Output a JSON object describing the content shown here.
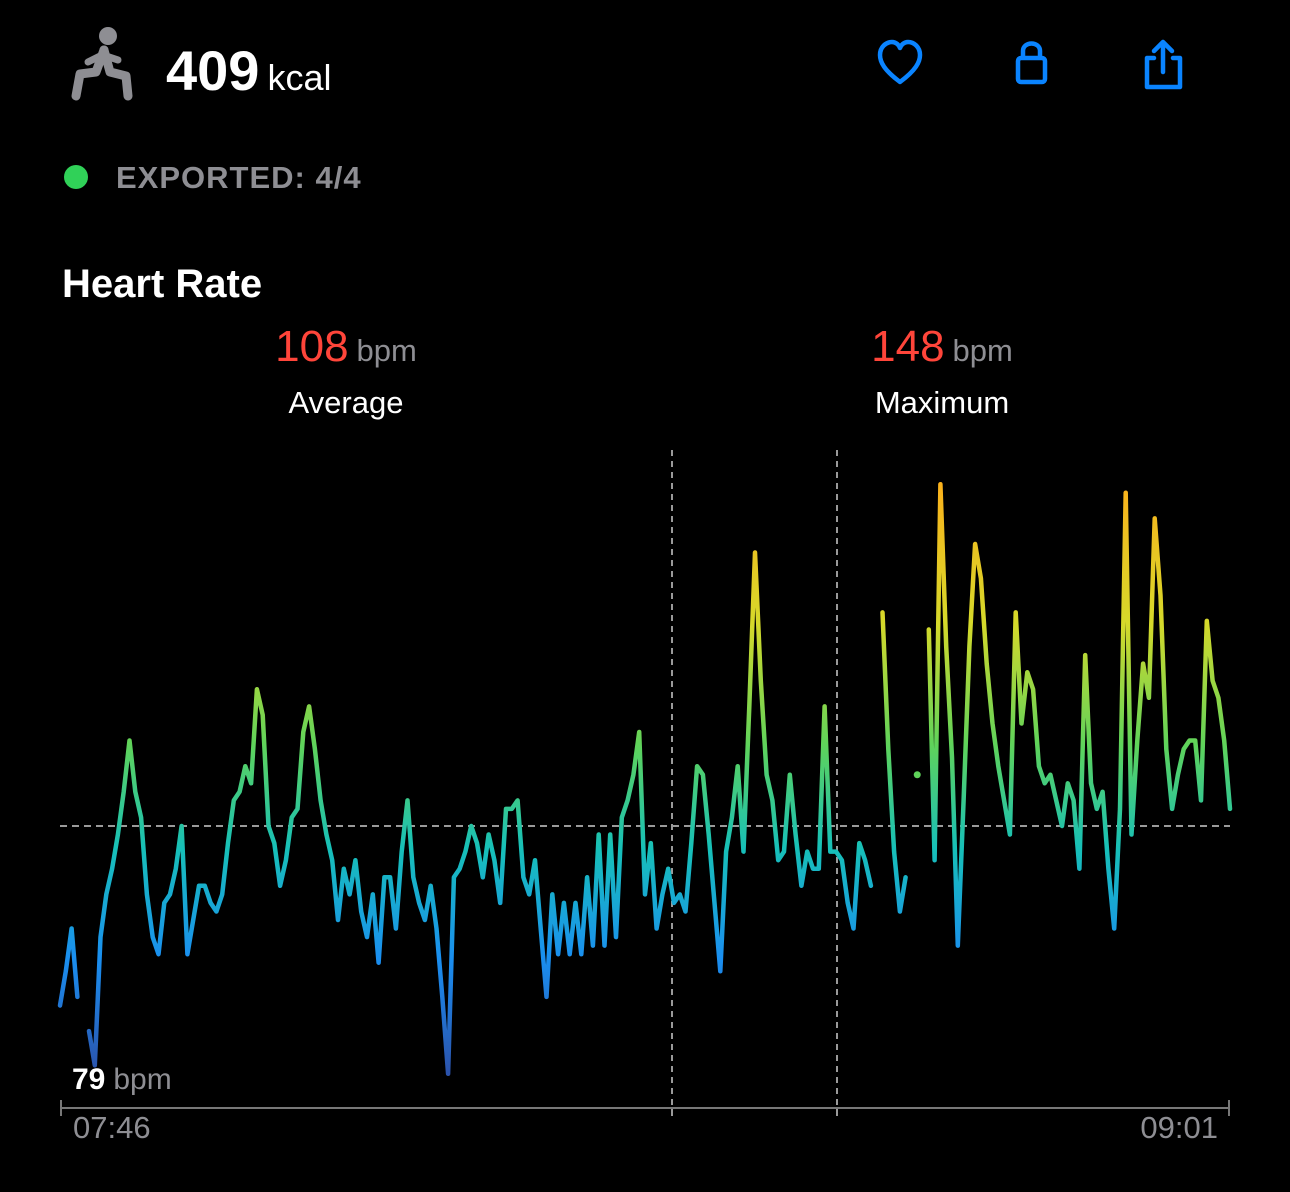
{
  "header": {
    "calories": 409,
    "calories_unit": "kcal",
    "export_status": "EXPORTED: 4/4"
  },
  "chart_data": {
    "type": "line",
    "title": "Heart Rate",
    "stats": [
      {
        "value": 108,
        "unit": "bpm",
        "label": "Average"
      },
      {
        "value": 148,
        "unit": "bpm",
        "label": "Maximum"
      }
    ],
    "min_label": {
      "value": 79,
      "unit": "bpm"
    },
    "x_labels": [
      "07:46",
      "09:01"
    ],
    "ylim": [
      75,
      152
    ],
    "values": [
      87,
      91,
      96,
      88,
      null,
      84,
      80,
      95,
      100,
      103,
      107,
      112,
      118,
      112,
      109,
      100,
      95,
      93,
      99,
      100,
      103,
      108,
      93,
      97,
      101,
      101,
      99,
      98,
      100,
      106,
      111,
      112,
      115,
      113,
      124,
      121,
      108,
      106,
      101,
      104,
      109,
      110,
      119,
      122,
      117,
      111,
      107,
      104,
      97,
      103,
      100,
      104,
      98,
      95,
      100,
      92,
      102,
      102,
      96,
      105,
      111,
      102,
      99,
      97,
      101,
      96,
      88,
      79,
      102,
      103,
      105,
      108,
      106,
      102,
      107,
      104,
      99,
      110,
      110,
      111,
      102,
      100,
      104,
      96,
      88,
      100,
      93,
      99,
      93,
      99,
      93,
      102,
      94,
      107,
      94,
      107,
      95,
      109,
      111,
      114,
      119,
      100,
      106,
      96,
      100,
      103,
      99,
      100,
      98,
      106,
      115,
      114,
      107,
      99,
      91,
      105,
      109,
      115,
      105,
      122,
      140,
      125,
      114,
      111,
      104,
      105,
      114,
      107,
      101,
      105,
      103,
      103,
      122,
      105,
      105,
      104,
      99,
      96,
      106,
      104,
      101,
      null,
      133,
      117,
      105,
      98,
      102,
      null,
      114,
      null,
      131,
      104,
      148,
      129,
      116,
      94,
      111,
      129,
      141,
      137,
      127,
      120,
      115,
      111,
      107,
      133,
      120,
      126,
      124,
      115,
      113,
      114,
      111,
      108,
      113,
      111,
      103,
      128,
      113,
      110,
      112,
      103,
      96,
      110,
      147,
      107,
      118,
      127,
      123,
      144,
      135,
      117,
      110,
      114,
      117,
      118,
      118,
      111,
      132,
      125,
      123,
      118,
      110
    ]
  }
}
